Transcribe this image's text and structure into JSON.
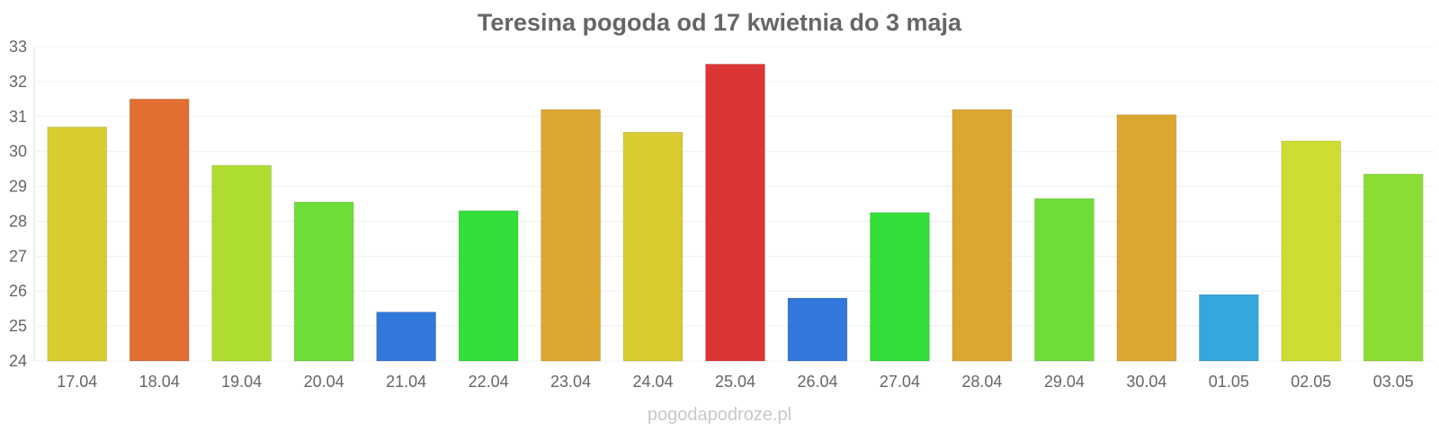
{
  "title": "Teresina pogoda od 17 kwietnia do 3 maja",
  "watermark": "pogodapodroze.pl",
  "chart_data": {
    "type": "bar",
    "title": "Teresina pogoda od 17 kwietnia do 3 maja",
    "xlabel": "",
    "ylabel": "",
    "categories": [
      "17.04",
      "18.04",
      "19.04",
      "20.04",
      "21.04",
      "22.04",
      "23.04",
      "24.04",
      "25.04",
      "26.04",
      "27.04",
      "28.04",
      "29.04",
      "30.04",
      "01.05",
      "02.05",
      "03.05"
    ],
    "values": [
      30.7,
      31.5,
      29.6,
      28.55,
      25.4,
      28.3,
      31.2,
      30.55,
      32.5,
      25.8,
      28.25,
      31.2,
      28.65,
      31.05,
      25.9,
      30.3,
      29.35
    ],
    "colors": [
      "#dacb31",
      "#e06f31",
      "#addd31",
      "#6dde38",
      "#3277dc",
      "#33de38",
      "#dca731",
      "#dacb31",
      "#dc3535",
      "#3277dc",
      "#33de38",
      "#dca731",
      "#6dde38",
      "#dca731",
      "#35a7dc",
      "#cfdd33",
      "#8cdd33"
    ],
    "ylim": [
      24,
      33
    ],
    "yticks": [
      "24",
      "25",
      "26",
      "27",
      "28",
      "29",
      "30",
      "31",
      "32",
      "33"
    ],
    "grid": true,
    "legend": "none"
  }
}
